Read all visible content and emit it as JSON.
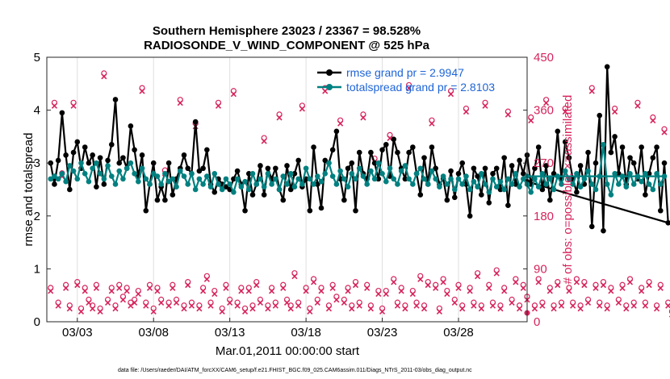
{
  "chart_data": {
    "type": "line",
    "title": "Southern Hemisphere 23023 / 23367 = 98.528%",
    "subtitle": "RADIOSONDE_V_WIND_COMPONENT @ 525 hPa",
    "xlabel": "Mar.01,2011 00:00:00 start",
    "ylabel": "rmse and totalspread",
    "y2label": "# of obs: o=possible; ×=assimilated",
    "footnote": "data file: /Users/raeder/DAI/ATM_forcXX/CAM6_setup/f.e21.FHIST_BGC.f09_025.CAM6assim.011/Diags_NTrS_2011-03/obs_diag_output.nc",
    "xlim": [
      1.0,
      32.5
    ],
    "ylim": [
      0,
      5
    ],
    "y2lim": [
      0,
      450
    ],
    "x_ticks": [
      3,
      8,
      13,
      18,
      23,
      28
    ],
    "x_tick_labels": [
      "03/03",
      "03/08",
      "03/13",
      "03/18",
      "03/23",
      "03/28"
    ],
    "y_ticks": [
      0,
      1,
      2,
      3,
      4,
      5
    ],
    "y_tick_labels": [
      "0",
      "1",
      "2",
      "3",
      "4",
      "5"
    ],
    "y2_ticks": [
      0,
      90,
      180,
      270,
      360,
      450
    ],
    "y2_tick_labels": [
      "0",
      "90",
      "180",
      "270",
      "360",
      "450"
    ],
    "x_start": 1.25,
    "x_step": 0.25,
    "series": [
      {
        "name": "rmse",
        "legend": "rmse grand pr = 2.9947",
        "color": "#000000",
        "values": [
          3.0,
          2.6,
          3.05,
          3.95,
          3.15,
          2.5,
          3.2,
          3.4,
          2.9,
          3.3,
          3.0,
          3.15,
          2.55,
          3.1,
          2.6,
          3.05,
          3.35,
          4.2,
          3.0,
          3.1,
          2.9,
          3.7,
          3.25,
          2.75,
          3.15,
          2.1,
          2.6,
          3.0,
          2.3,
          2.55,
          2.3,
          3.0,
          2.4,
          2.7,
          2.9,
          3.15,
          2.9,
          2.8,
          3.78,
          2.85,
          2.9,
          3.25,
          2.6,
          2.45,
          2.7,
          2.6,
          2.55,
          2.5,
          2.7,
          2.85,
          2.6,
          2.1,
          2.8,
          2.4,
          2.6,
          2.95,
          2.4,
          2.9,
          2.7,
          2.9,
          2.5,
          2.3,
          2.95,
          2.5,
          2.8,
          3.05,
          2.55,
          2.7,
          2.1,
          3.3,
          2.6,
          2.15,
          3.05,
          3.0,
          3.25,
          3.6,
          2.7,
          2.3,
          2.9,
          3.0,
          2.1,
          3.2,
          2.8,
          2.7,
          3.2,
          3.0,
          2.7,
          3.25,
          3.35,
          2.75,
          3.45,
          3.2,
          2.9,
          2.7,
          3.2,
          3.3,
          2.8,
          2.4,
          3.1,
          2.6,
          3.3,
          2.9,
          2.6,
          2.7,
          2.3,
          2.85,
          2.35,
          2.8,
          3.0,
          2.6,
          2.0,
          2.9,
          2.75,
          2.4,
          2.9,
          2.25,
          2.8,
          2.9,
          2.5,
          3.1,
          2.2,
          2.95,
          2.6,
          3.05,
          2.8,
          3.15,
          2.6,
          2.9,
          3.3,
          2.5,
          2.95,
          2.3,
          2.8,
          3.6,
          2.7,
          3.4,
          3.1,
          2.7,
          2.45,
          2.95,
          2.6,
          3.2,
          1.8,
          3.0,
          3.9,
          1.72,
          4.82,
          3.2,
          3.5,
          2.8,
          3.3,
          2.6,
          3.1,
          3.0,
          2.7,
          3.3,
          2.4,
          2.8,
          3.1,
          3.3,
          2.1,
          3.0,
          1.87
        ],
        "final_value": 2.65
      },
      {
        "name": "totalspread",
        "legend": "totalspread grand pr = 2.8103",
        "color": "#008080",
        "values": [
          2.7,
          2.75,
          2.7,
          2.8,
          2.65,
          2.95,
          2.85,
          2.7,
          3.0,
          2.8,
          2.65,
          2.9,
          3.0,
          2.8,
          2.7,
          2.95,
          2.75,
          2.6,
          2.85,
          2.7,
          2.9,
          3.0,
          2.8,
          2.65,
          2.9,
          2.7,
          2.6,
          2.8,
          2.75,
          2.6,
          2.8,
          2.65,
          2.7,
          2.55,
          2.85,
          2.75,
          2.6,
          2.8,
          2.5,
          2.7,
          2.6,
          2.75,
          2.55,
          2.8,
          2.6,
          2.5,
          2.7,
          2.6,
          2.45,
          2.7,
          2.55,
          2.65,
          2.5,
          2.8,
          2.6,
          2.7,
          2.55,
          2.8,
          2.6,
          2.7,
          2.5,
          2.75,
          2.6,
          2.8,
          2.55,
          2.7,
          2.6,
          2.9,
          2.7,
          2.6,
          2.75,
          2.65,
          2.8,
          3.0,
          2.75,
          2.6,
          2.85,
          2.7,
          2.55,
          2.8,
          2.7,
          2.9,
          2.75,
          2.6,
          2.85,
          2.7,
          3.0,
          2.8,
          2.65,
          2.9,
          2.7,
          2.6,
          2.85,
          2.95,
          2.7,
          2.6,
          2.8,
          2.9,
          2.7,
          2.6,
          2.85,
          2.7,
          2.55,
          2.75,
          2.6,
          2.7,
          2.5,
          2.7,
          2.6,
          2.75,
          2.5,
          2.65,
          2.55,
          2.8,
          2.6,
          2.45,
          2.7,
          2.55,
          2.65,
          2.5,
          2.7,
          2.6,
          2.8,
          2.55,
          2.7,
          2.6,
          2.45,
          2.7,
          2.55,
          2.8,
          2.6,
          2.7,
          2.5,
          2.75,
          2.6,
          2.85,
          2.7,
          2.6,
          2.8,
          2.55,
          2.7,
          2.85,
          2.6,
          2.5,
          2.75,
          3.35,
          2.6,
          2.4,
          2.8,
          2.6,
          2.75,
          2.55,
          2.8,
          2.6,
          2.75,
          2.65,
          2.8,
          2.6,
          2.5,
          2.8,
          2.6,
          2.75
        ],
        "final_value": 2.75
      },
      {
        "name": "possible",
        "axis": "right",
        "color": "#d6245c",
        "values": [
          55,
          370,
          30,
          250,
          60,
          25,
          370,
          65,
          20,
          55,
          35,
          25,
          60,
          20,
          420,
          35,
          55,
          25,
          60,
          40,
          55,
          30,
          35,
          50,
          395,
          30,
          60,
          20,
          55,
          35,
          255,
          30,
          60,
          35,
          375,
          25,
          65,
          30,
          335,
          25,
          55,
          75,
          30,
          50,
          370,
          20,
          60,
          35,
          390,
          30,
          55,
          20,
          55,
          25,
          65,
          35,
          310,
          25,
          55,
          30,
          350,
          60,
          35,
          25,
          80,
          30,
          365,
          55,
          20,
          70,
          35,
          55,
          395,
          25,
          60,
          40,
          340,
          35,
          55,
          25,
          65,
          30,
          350,
          60,
          25,
          275,
          50,
          20,
          50,
          315,
          70,
          30,
          55,
          25,
          400,
          50,
          30,
          75,
          25,
          65,
          340,
          60,
          20,
          70,
          50,
          390,
          35,
          60,
          25,
          360,
          55,
          30,
          80,
          25,
          370,
          60,
          30,
          85,
          25,
          55,
          355,
          35,
          70,
          25,
          60,
          40,
          345,
          25,
          70,
          30,
          375,
          55,
          25,
          65,
          30,
          360,
          55,
          30,
          70,
          25,
          65,
          35,
          395,
          60,
          30,
          65,
          25,
          55,
          360,
          35,
          60,
          25,
          70,
          30,
          370,
          55,
          30,
          65,
          345,
          25,
          60,
          325,
          30,
          15
        ]
      }
    ]
  }
}
